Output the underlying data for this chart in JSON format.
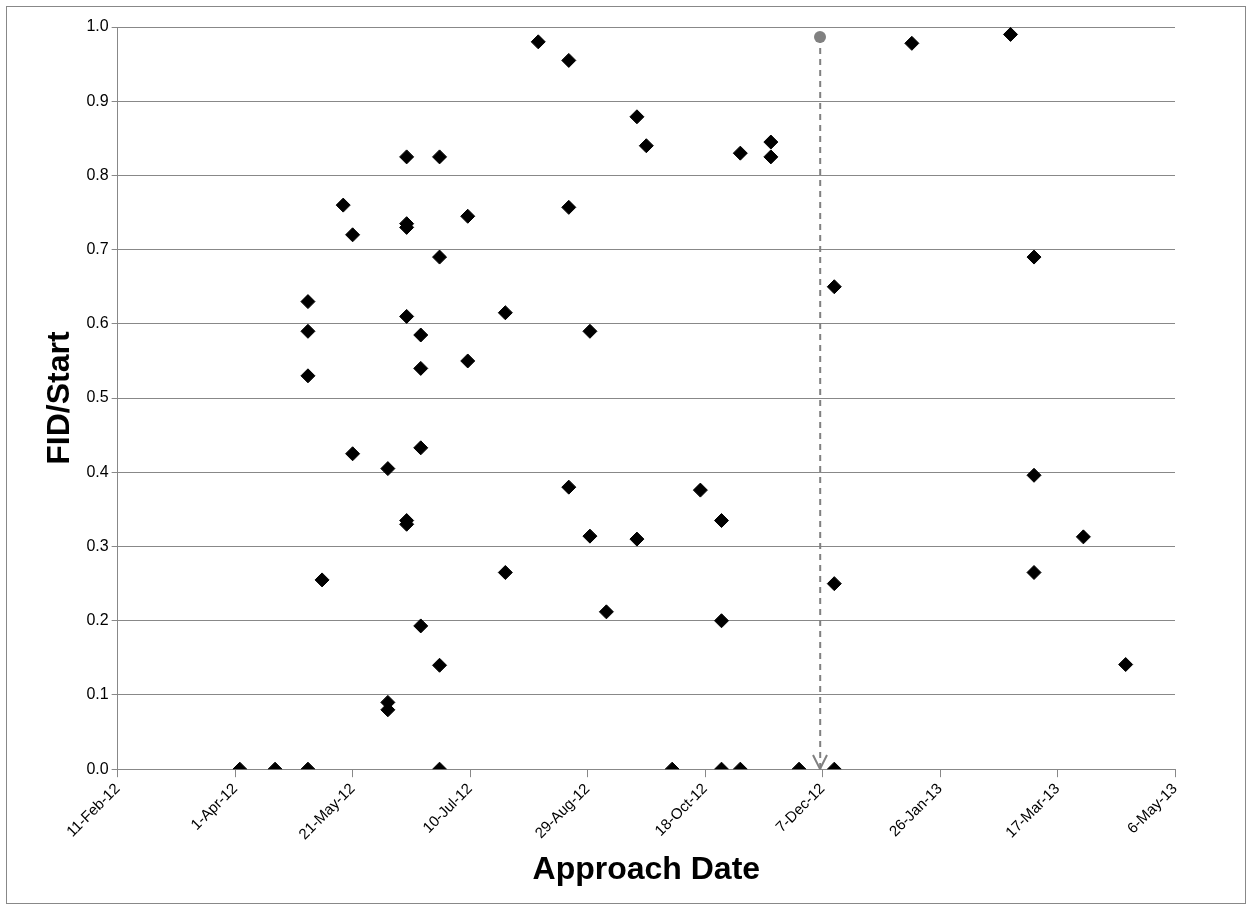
{
  "chart_data": {
    "type": "scatter",
    "xlabel": "Approach Date",
    "ylabel": "FID/Start",
    "marker": "diamond",
    "grid": "y",
    "legend": false,
    "xlim": [
      "2012-02-11",
      "2013-05-06"
    ],
    "xticks": [
      {
        "value": "2012-02-11",
        "label": "11-Feb-12"
      },
      {
        "value": "2012-04-01",
        "label": "1-Apr-12"
      },
      {
        "value": "2012-05-21",
        "label": "21-May-12"
      },
      {
        "value": "2012-07-10",
        "label": "10-Jul-12"
      },
      {
        "value": "2012-08-29",
        "label": "29-Aug-12"
      },
      {
        "value": "2012-10-18",
        "label": "18-Oct-12"
      },
      {
        "value": "2012-12-07",
        "label": "7-Dec-12"
      },
      {
        "value": "2013-01-26",
        "label": "26-Jan-13"
      },
      {
        "value": "2013-03-17",
        "label": "17-Mar-13"
      },
      {
        "value": "2013-05-06",
        "label": "6-May-13"
      }
    ],
    "ylim": [
      0,
      1
    ],
    "yticks": [
      {
        "value": 0,
        "label": "0.0"
      },
      {
        "value": 0.1,
        "label": "0.1"
      },
      {
        "value": 0.2,
        "label": "0.2"
      },
      {
        "value": 0.3,
        "label": "0.3"
      },
      {
        "value": 0.4,
        "label": "0.4"
      },
      {
        "value": 0.5,
        "label": "0.5"
      },
      {
        "value": 0.6,
        "label": "0.6"
      },
      {
        "value": 0.7,
        "label": "0.7"
      },
      {
        "value": 0.8,
        "label": "0.8"
      },
      {
        "value": 0.9,
        "label": "0.9"
      },
      {
        "value": 1,
        "label": "1.0"
      }
    ],
    "ref_lines": [
      {
        "axis": "x",
        "value": "2012-12-06",
        "color": "#808080",
        "line_style": "dashed"
      }
    ],
    "series": [
      {
        "color": "#000000",
        "x": [
          "2012-04-03",
          "2012-04-18",
          "2012-05-02",
          "2012-05-02",
          "2012-05-02",
          "2012-05-02",
          "2012-05-08",
          "2012-05-17",
          "2012-05-21",
          "2012-05-21",
          "2012-06-05",
          "2012-06-05",
          "2012-06-05",
          "2012-06-13",
          "2012-06-13",
          "2012-06-13",
          "2012-06-13",
          "2012-06-13",
          "2012-06-13",
          "2012-06-19",
          "2012-06-19",
          "2012-06-19",
          "2012-06-19",
          "2012-06-27",
          "2012-06-27",
          "2012-06-27",
          "2012-06-27",
          "2012-07-09",
          "2012-07-09",
          "2012-07-25",
          "2012-07-25",
          "2012-08-08",
          "2012-08-21",
          "2012-08-21",
          "2012-08-21",
          "2012-08-30",
          "2012-08-30",
          "2012-09-06",
          "2012-09-19",
          "2012-09-19",
          "2012-09-23",
          "2012-10-04",
          "2012-10-16",
          "2012-10-25",
          "2012-10-25",
          "2012-10-25",
          "2012-11-02",
          "2012-11-02",
          "2012-11-15",
          "2012-11-15",
          "2012-11-27",
          "2012-12-12",
          "2012-12-12",
          "2012-12-12",
          "2013-01-14",
          "2013-02-25",
          "2013-03-07",
          "2013-03-07",
          "2013-03-07",
          "2013-03-28",
          "2013-04-15"
        ],
        "values": [
          0,
          0,
          0,
          0.63,
          0.59,
          0.53,
          0.255,
          0.76,
          0.72,
          0.425,
          0.405,
          0.09,
          0.08,
          0.825,
          0.735,
          0.73,
          0.61,
          0.335,
          0.33,
          0.585,
          0.54,
          0.433,
          0.193,
          0.825,
          0.69,
          0.14,
          0,
          0.745,
          0.55,
          0.615,
          0.265,
          0.98,
          0.955,
          0.757,
          0.38,
          0.59,
          0.314,
          0.212,
          0.879,
          0.31,
          0.84,
          0,
          0.376,
          0.335,
          0.2,
          0,
          0.83,
          0,
          0.845,
          0.825,
          0,
          0.65,
          0.25,
          0,
          0.978,
          0.99,
          0.69,
          0.396,
          0.265,
          0.313,
          0.141
        ]
      }
    ]
  }
}
